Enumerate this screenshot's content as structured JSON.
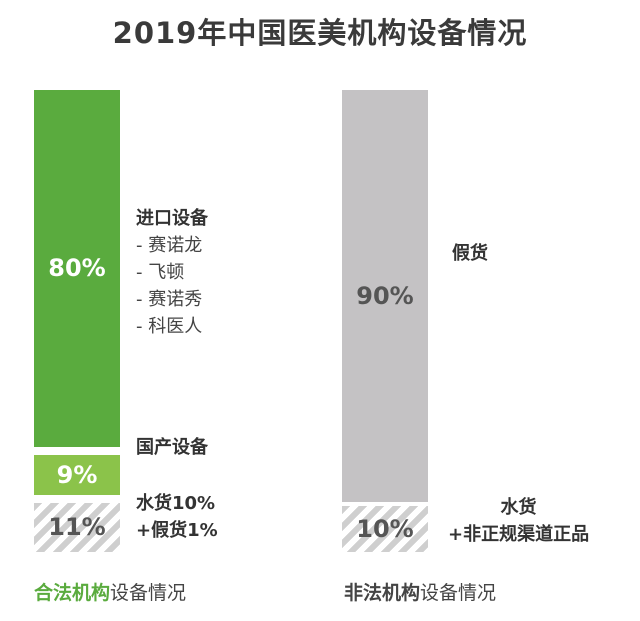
{
  "title": "2019年中国医美机构设备情况",
  "colors": {
    "legal_main": "#5aab3e",
    "legal_domestic": "#8bc34a",
    "illegal_main": "#c4c2c4",
    "hatch": "#cfcfcf",
    "footer_legal": "#5aab3e"
  },
  "chart_data": [
    {
      "type": "bar",
      "subtype": "stacked-100",
      "segments": [
        {
          "name": "进口设备",
          "value": 80,
          "label": "80%",
          "items": [
            "- 赛诺龙",
            "- 飞顿",
            "- 赛诺秀",
            "- 科医人"
          ]
        },
        {
          "name": "国产设备",
          "value": 9,
          "label": "9%"
        },
        {
          "name": "水货10%\n+假货1%",
          "value": 11,
          "label": "11%"
        }
      ],
      "footer_highlight": "合法机构",
      "footer_rest": "设备情况"
    },
    {
      "type": "bar",
      "subtype": "stacked-100",
      "segments": [
        {
          "name": "假货",
          "value": 90,
          "label": "90%"
        },
        {
          "name": "水货\n+非正规渠道正品",
          "value": 10,
          "label": "10%"
        }
      ],
      "footer_highlight": "非法机构",
      "footer_rest": "设备情况"
    }
  ]
}
